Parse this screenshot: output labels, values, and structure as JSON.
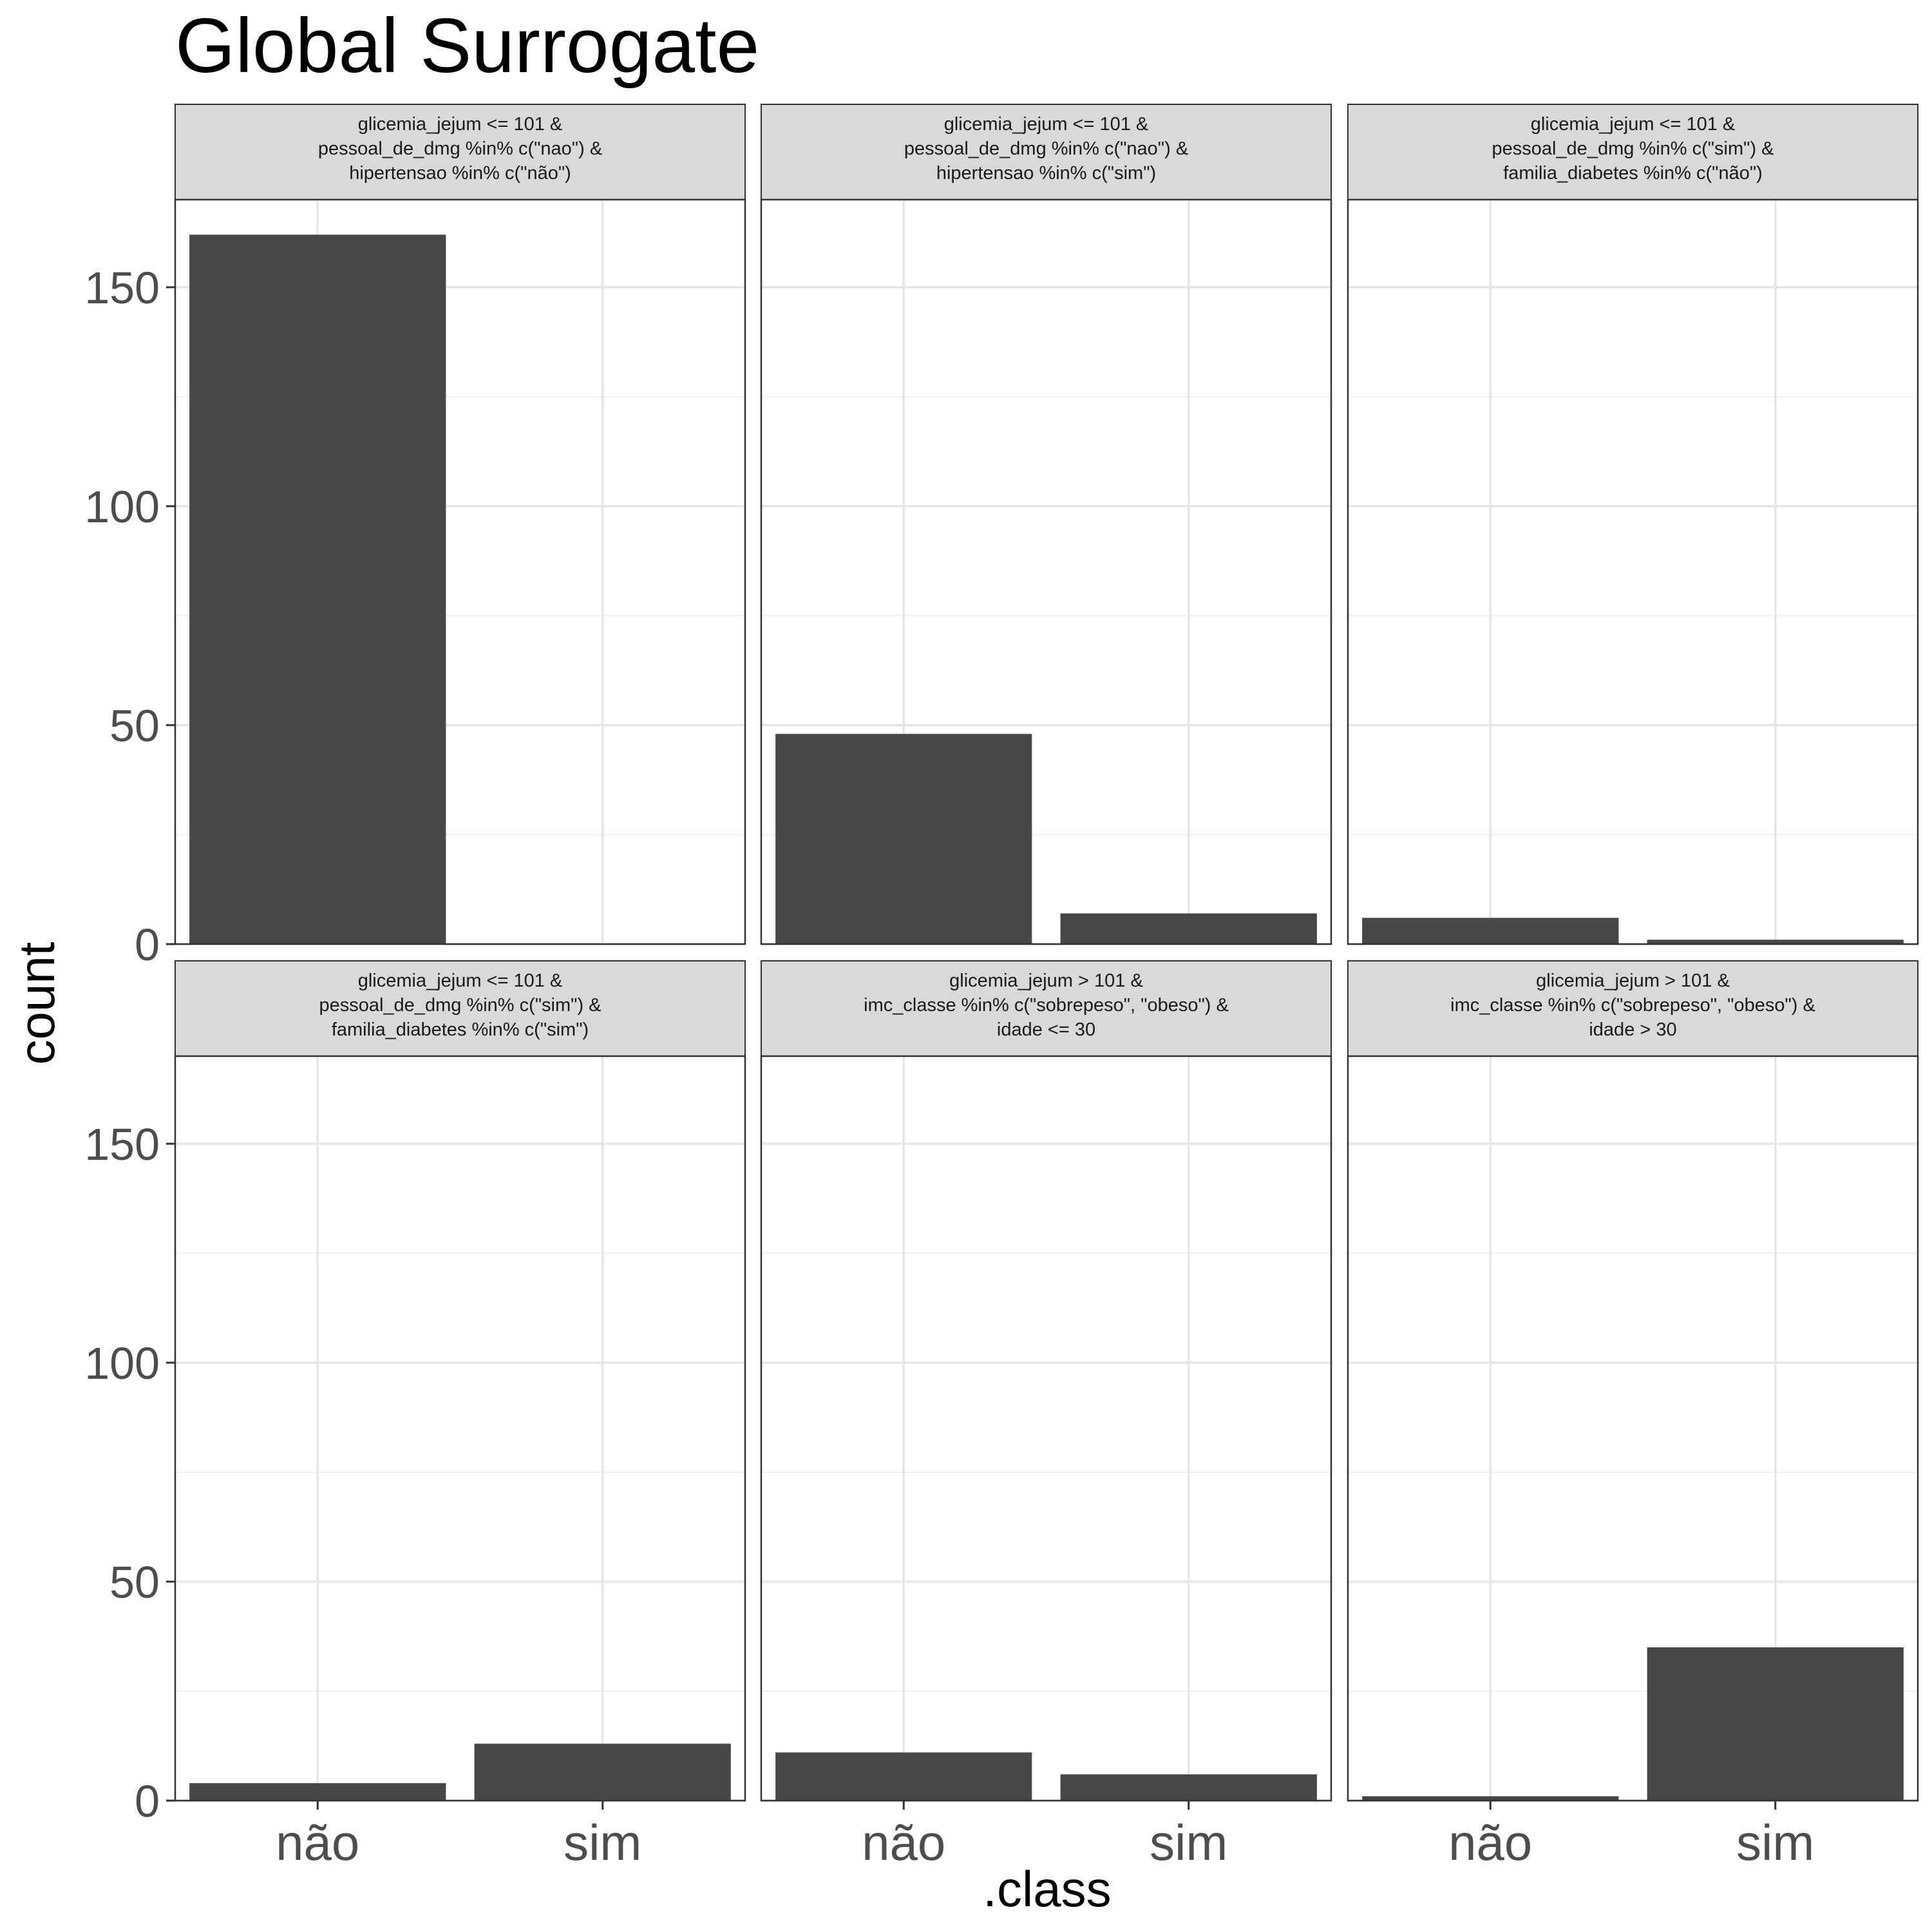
{
  "chart_data": {
    "type": "bar",
    "title": "Global Surrogate",
    "xlabel": ".class",
    "ylabel": "count",
    "categories": [
      "não",
      "sim"
    ],
    "y_ticks": [
      "0",
      "50",
      "100",
      "150"
    ],
    "ylim": [
      0,
      170
    ],
    "grid": true,
    "bar_color": "#474747",
    "facets": [
      {
        "label": [
          "glicemia_jejum <= 101 &",
          "pessoal_de_dmg %in% c(\"nao\") &",
          "hipertensao %in% c(\"não\")"
        ],
        "values": [
          162,
          0
        ]
      },
      {
        "label": [
          "glicemia_jejum <= 101 &",
          "pessoal_de_dmg %in% c(\"nao\") &",
          "hipertensao %in% c(\"sim\")"
        ],
        "values": [
          48,
          7
        ]
      },
      {
        "label": [
          "glicemia_jejum <= 101 &",
          "pessoal_de_dmg %in% c(\"sim\") &",
          "familia_diabetes %in% c(\"não\")"
        ],
        "values": [
          6,
          1
        ]
      },
      {
        "label": [
          "glicemia_jejum <= 101 &",
          "pessoal_de_dmg %in% c(\"sim\") &",
          "familia_diabetes %in% c(\"sim\")"
        ],
        "values": [
          4,
          13
        ]
      },
      {
        "label": [
          "glicemia_jejum > 101 &",
          "imc_classe %in% c(\"sobrepeso\", \"obeso\") &",
          "idade <= 30"
        ],
        "values": [
          11,
          6
        ]
      },
      {
        "label": [
          "glicemia_jejum > 101 &",
          "imc_classe %in% c(\"sobrepeso\", \"obeso\") &",
          "idade > 30"
        ],
        "values": [
          1,
          35
        ]
      }
    ]
  }
}
